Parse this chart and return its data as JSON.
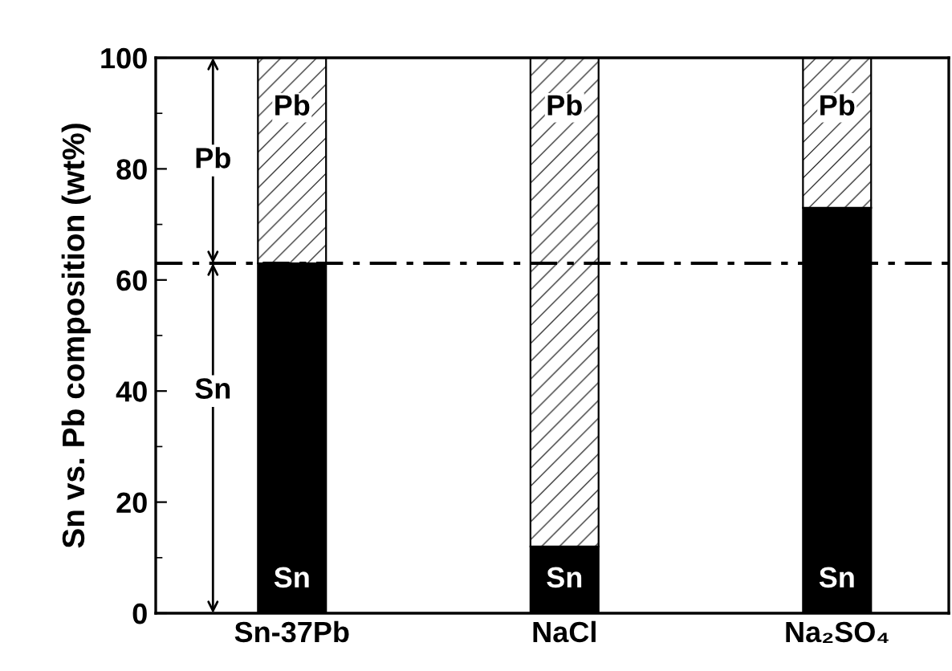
{
  "chart_data": {
    "type": "bar",
    "stacked": true,
    "ylabel": "Sn vs. Pb composition (wt%)",
    "categories": [
      "Sn-37Pb",
      "NaCl",
      "Na₂SO₄"
    ],
    "series": [
      {
        "name": "Sn",
        "color": "#000000",
        "values": [
          63,
          12,
          73
        ]
      },
      {
        "name": "Pb",
        "color": "#ffffff",
        "values": [
          37,
          88,
          27
        ]
      }
    ],
    "ylim": [
      0,
      100
    ],
    "yticks": [
      0,
      20,
      40,
      60,
      80,
      100
    ],
    "ref_lines": [
      {
        "axis": "y",
        "value": 63,
        "line_style": "dashdot",
        "color": "#000000"
      }
    ],
    "annotations": [
      {
        "text": "Pb",
        "y": 81.5
      },
      {
        "text": "Sn",
        "y": 40
      }
    ],
    "grid": false,
    "legend": false
  }
}
